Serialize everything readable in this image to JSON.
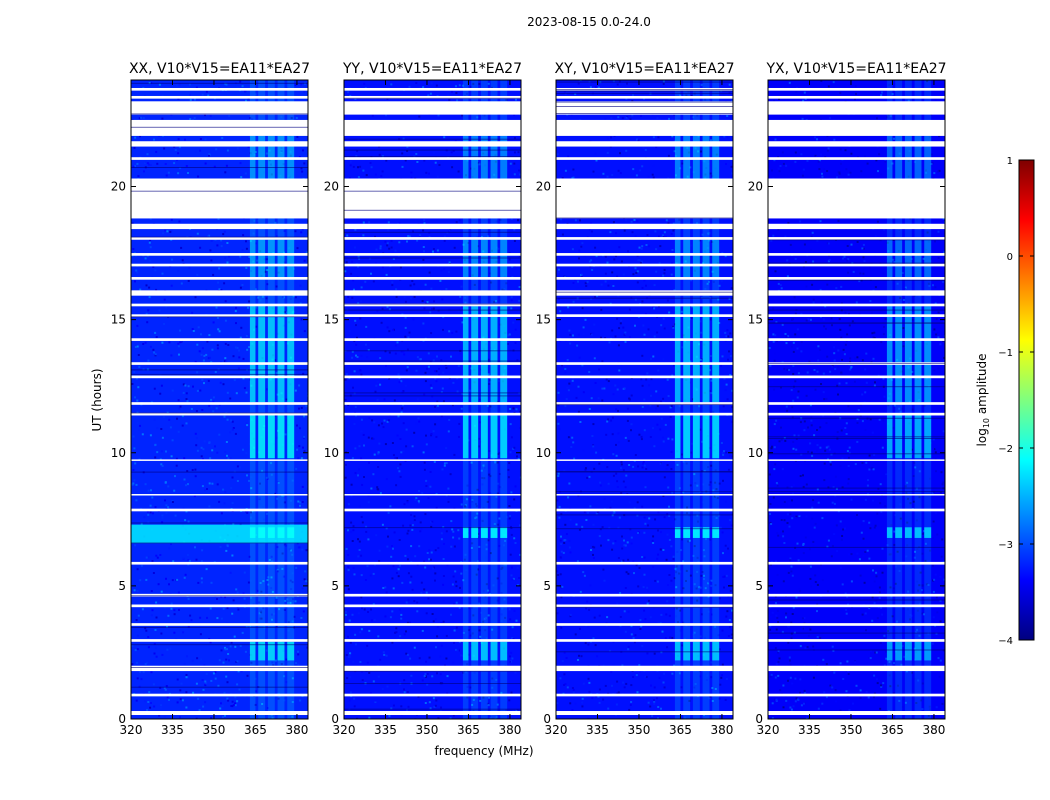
{
  "suptitle": "2023-08-15 0.0-24.0",
  "xlabel": "frequency (MHz)",
  "ylabel": "UT (hours)",
  "colormap": [
    "#00007f",
    "#0000ff",
    "#007fff",
    "#00ffff",
    "#7fff7f",
    "#ffff00",
    "#ff7f00",
    "#ff0000",
    "#7f0000"
  ],
  "chart_data": [
    {
      "type": "heatmap",
      "title": "XX, V10*V15=EA11*EA27",
      "xlim": [
        320,
        384
      ],
      "ylim": [
        0,
        24
      ],
      "xticks": [
        320,
        335,
        350,
        365,
        380
      ],
      "yticks": [
        0,
        5,
        10,
        15,
        20
      ],
      "x_tick_labels": [
        "320",
        "335",
        "350",
        "365",
        "380"
      ],
      "y_tick_labels": [
        "0",
        "5",
        "10",
        "15",
        "20"
      ],
      "base_log_amplitude": -3.2,
      "rfi_bands_mhz": [
        [
          363,
          365
        ],
        [
          366,
          368.5
        ],
        [
          369.5,
          372
        ],
        [
          373,
          375.5
        ],
        [
          376.5,
          379
        ]
      ],
      "rfi_log_amplitude": -2.1,
      "bright_ut_ranges": [
        [
          6.6,
          7.3
        ]
      ]
    },
    {
      "type": "heatmap",
      "title": "YY, V10*V15=EA11*EA27",
      "xlim": [
        320,
        384
      ],
      "ylim": [
        0,
        24
      ],
      "xticks": [
        320,
        335,
        350,
        365,
        380
      ],
      "yticks": [
        0,
        5,
        10,
        15,
        20
      ],
      "x_tick_labels": [
        "320",
        "335",
        "350",
        "365",
        "380"
      ],
      "y_tick_labels": [
        "0",
        "5",
        "10",
        "15",
        "20"
      ],
      "base_log_amplitude": -3.3,
      "rfi_bands_mhz": [
        [
          363,
          365
        ],
        [
          366,
          368.5
        ],
        [
          369.5,
          372
        ],
        [
          373,
          375.5
        ],
        [
          376.5,
          379
        ]
      ],
      "rfi_log_amplitude": -2.2,
      "bright_ut_ranges": []
    },
    {
      "type": "heatmap",
      "title": "XY, V10*V15=EA11*EA27",
      "xlim": [
        320,
        384
      ],
      "ylim": [
        0,
        24
      ],
      "xticks": [
        320,
        335,
        350,
        365,
        380
      ],
      "yticks": [
        0,
        5,
        10,
        15,
        20
      ],
      "x_tick_labels": [
        "320",
        "335",
        "350",
        "365",
        "380"
      ],
      "y_tick_labels": [
        "0",
        "5",
        "10",
        "15",
        "20"
      ],
      "base_log_amplitude": -3.3,
      "rfi_bands_mhz": [
        [
          363,
          365
        ],
        [
          366,
          368.5
        ],
        [
          369.5,
          372
        ],
        [
          373,
          375.5
        ],
        [
          376.5,
          379
        ]
      ],
      "rfi_log_amplitude": -2.2,
      "bright_ut_ranges": []
    },
    {
      "type": "heatmap",
      "title": "YX, V10*V15=EA11*EA27",
      "xlim": [
        320,
        384
      ],
      "ylim": [
        0,
        24
      ],
      "xticks": [
        320,
        335,
        350,
        365,
        380
      ],
      "yticks": [
        0,
        5,
        10,
        15,
        20
      ],
      "x_tick_labels": [
        "320",
        "335",
        "350",
        "365",
        "380"
      ],
      "y_tick_labels": [
        "0",
        "5",
        "10",
        "15",
        "20"
      ],
      "base_log_amplitude": -3.4,
      "rfi_bands_mhz": [
        [
          363,
          365
        ],
        [
          366,
          368.5
        ],
        [
          369.5,
          372
        ],
        [
          373,
          375.5
        ],
        [
          376.5,
          379
        ]
      ],
      "rfi_log_amplitude": -2.4,
      "bright_ut_ranges": []
    }
  ],
  "flagged_ut_ranges": [
    [
      0.15,
      0.3
    ],
    [
      0.85,
      0.95
    ],
    [
      1.8,
      2.0
    ],
    [
      2.9,
      3.0
    ],
    [
      3.5,
      3.6
    ],
    [
      4.2,
      4.3
    ],
    [
      4.6,
      4.7
    ],
    [
      5.8,
      5.9
    ],
    [
      7.8,
      7.9
    ],
    [
      8.4,
      8.45
    ],
    [
      9.7,
      9.75
    ],
    [
      11.4,
      11.5
    ],
    [
      11.8,
      11.9
    ],
    [
      12.8,
      12.9
    ],
    [
      13.3,
      13.4
    ],
    [
      14.2,
      14.3
    ],
    [
      15.1,
      15.2
    ],
    [
      15.5,
      15.6
    ],
    [
      15.9,
      16.1
    ],
    [
      16.5,
      16.6
    ],
    [
      17.0,
      17.1
    ],
    [
      17.4,
      17.5
    ],
    [
      18.0,
      18.1
    ],
    [
      18.4,
      18.6
    ],
    [
      18.8,
      20.3
    ],
    [
      21.0,
      21.1
    ],
    [
      21.5,
      21.7
    ],
    [
      21.9,
      22.5
    ],
    [
      22.7,
      23.2
    ],
    [
      23.3,
      23.4
    ],
    [
      23.6,
      23.7
    ]
  ],
  "colorbar": {
    "label_prefix": "log",
    "label_sub": "10",
    "label_suffix": " amplitude",
    "range": [
      -4,
      1
    ],
    "ticks": [
      -4,
      -3,
      -2,
      -1,
      0,
      1
    ],
    "tick_labels": [
      "−4",
      "−3",
      "−2",
      "−1",
      "0",
      "1"
    ]
  }
}
